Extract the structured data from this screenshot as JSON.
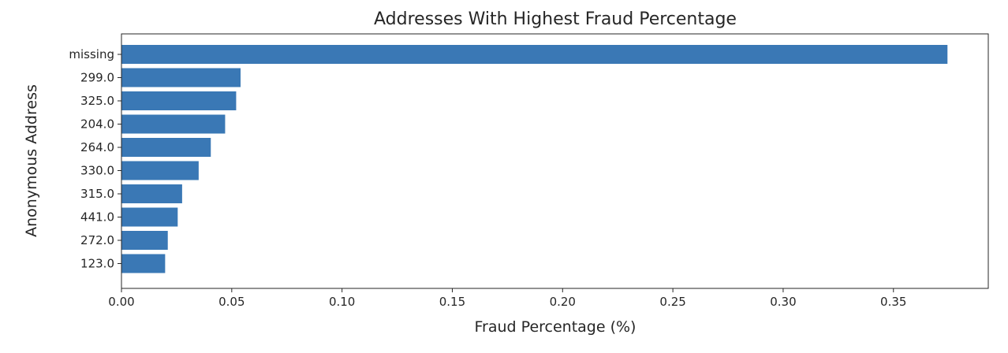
{
  "chart_data": {
    "type": "bar",
    "orientation": "horizontal",
    "title": "Addresses With Highest Fraud Percentage",
    "xlabel": "Fraud Percentage (%)",
    "ylabel": "Anonymous Address",
    "categories": [
      "missing",
      "299.0",
      "325.0",
      "204.0",
      "264.0",
      "330.0",
      "315.0",
      "441.0",
      "272.0",
      "123.0"
    ],
    "values": [
      0.3745,
      0.054,
      0.052,
      0.047,
      0.0405,
      0.035,
      0.0275,
      0.0255,
      0.021,
      0.0198
    ],
    "xlim": [
      0.0,
      0.393
    ],
    "xticks": [
      "0.00",
      "0.05",
      "0.10",
      "0.15",
      "0.20",
      "0.25",
      "0.30",
      "0.35"
    ],
    "xtick_values": [
      0.0,
      0.05,
      0.1,
      0.15,
      0.2,
      0.25,
      0.3,
      0.35
    ],
    "bar_color": "#3a78b5",
    "grid": false,
    "legend": "none"
  }
}
